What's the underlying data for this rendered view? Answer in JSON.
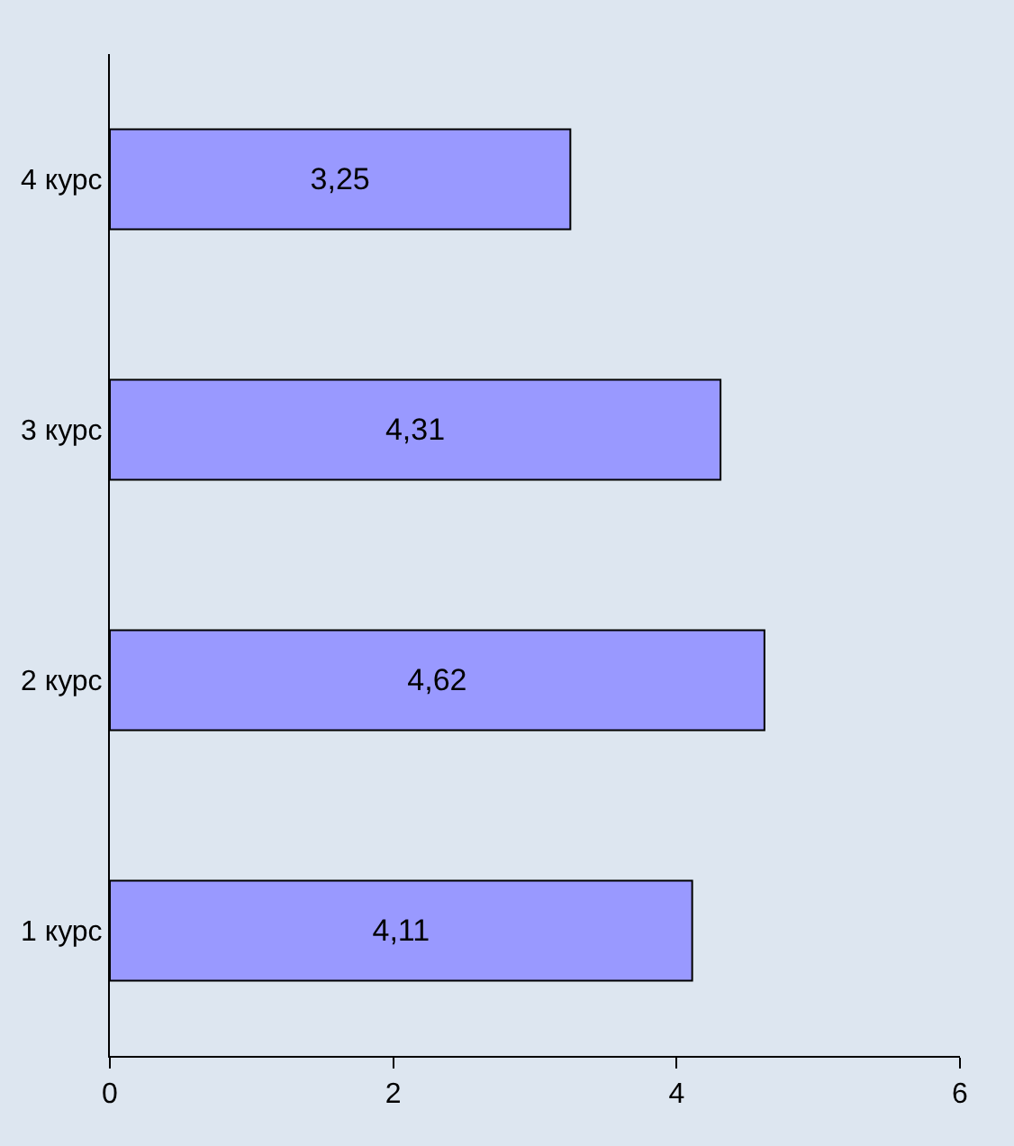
{
  "chart_data": {
    "type": "bar",
    "orientation": "horizontal",
    "categories": [
      "4 курс",
      "3 курс",
      "2 курс",
      "1 курс"
    ],
    "values": [
      3.25,
      4.31,
      4.62,
      4.11
    ],
    "value_labels": [
      "3,25",
      "4,31",
      "4,62",
      "4,11"
    ],
    "color": "#9999ff",
    "xlim": [
      0,
      6
    ],
    "xticks": [
      0,
      2,
      4,
      6
    ],
    "grid": false,
    "legend": false
  }
}
